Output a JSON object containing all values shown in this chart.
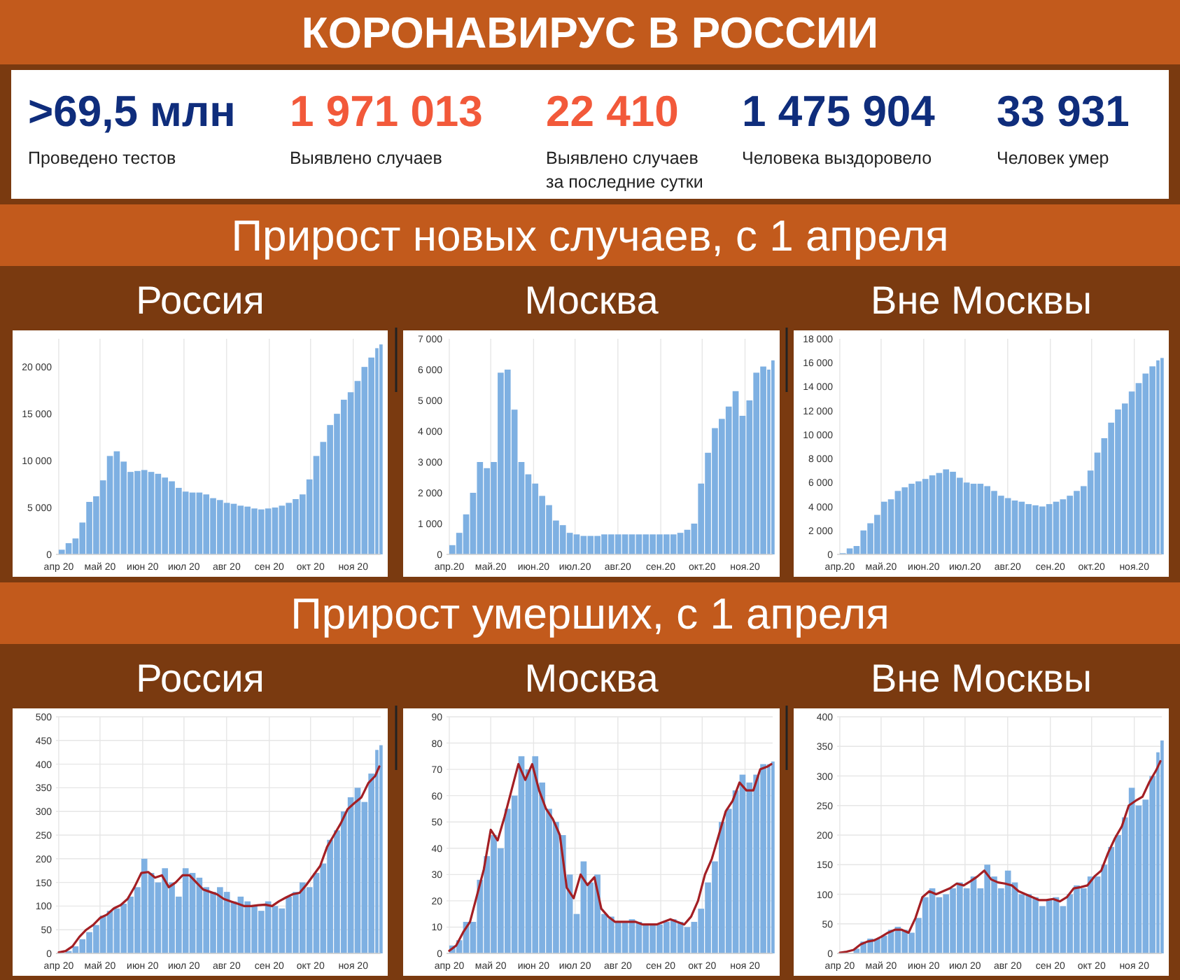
{
  "chart_data": [
    {
      "type": "other",
      "title": "КОРОНАВИРУС В РОССИИ",
      "categories": [
        "Проведено тестов",
        "Выявлено случаев",
        "Выявлено случаев за последние сутки",
        "Человека выздоровело",
        "Человек умер"
      ],
      "value_labels": [
        ">69,5 млн",
        "1 971 013",
        "22 410",
        "1 475 904",
        "33 931"
      ],
      "colors": [
        "#0f2d7c",
        "#f2593a",
        "#f2593a",
        "#0f2d7c",
        "#0f2d7c"
      ]
    },
    {
      "type": "other",
      "title": "Прирост новых случаев, с 1 апреля"
    },
    {
      "type": "bar",
      "title": "Россия",
      "color": "#7eb0e2",
      "grid": "x",
      "x": [
        "2020-04-01",
        "2020-04-06",
        "2020-04-11",
        "2020-04-16",
        "2020-04-21",
        "2020-04-26",
        "2020-05-01",
        "2020-05-06",
        "2020-05-11",
        "2020-05-16",
        "2020-05-21",
        "2020-05-26",
        "2020-05-31",
        "2020-06-05",
        "2020-06-10",
        "2020-06-15",
        "2020-06-20",
        "2020-06-25",
        "2020-06-30",
        "2020-07-05",
        "2020-07-10",
        "2020-07-15",
        "2020-07-20",
        "2020-07-25",
        "2020-07-30",
        "2020-08-04",
        "2020-08-09",
        "2020-08-14",
        "2020-08-19",
        "2020-08-24",
        "2020-08-29",
        "2020-09-03",
        "2020-09-08",
        "2020-09-13",
        "2020-09-18",
        "2020-09-23",
        "2020-09-28",
        "2020-10-03",
        "2020-10-08",
        "2020-10-13",
        "2020-10-18",
        "2020-10-23",
        "2020-10-28",
        "2020-11-02",
        "2020-11-07",
        "2020-11-12",
        "2020-11-17",
        "2020-11-20"
      ],
      "values": [
        500,
        1200,
        1700,
        3400,
        5600,
        6200,
        7900,
        10500,
        11000,
        9900,
        8800,
        8900,
        9000,
        8800,
        8600,
        8200,
        7800,
        7100,
        6700,
        6600,
        6600,
        6400,
        6000,
        5800,
        5500,
        5400,
        5200,
        5100,
        4900,
        4800,
        4900,
        5000,
        5200,
        5500,
        5900,
        6400,
        8000,
        10500,
        12000,
        13800,
        15000,
        16500,
        17300,
        18500,
        20000,
        21000,
        22000,
        22400
      ],
      "xlim": [
        "2020-03-30",
        "2020-11-21"
      ],
      "ylim": [
        0,
        23000
      ],
      "xticks": [
        {
          "value": "2020-04-01",
          "label": "апр 20"
        },
        {
          "value": "2020-05-01",
          "label": "май 20"
        },
        {
          "value": "2020-06-01",
          "label": "июн 20"
        },
        {
          "value": "2020-07-01",
          "label": "июл 20"
        },
        {
          "value": "2020-08-01",
          "label": "авг 20"
        },
        {
          "value": "2020-09-01",
          "label": "сен 20"
        },
        {
          "value": "2020-10-01",
          "label": "окт 20"
        },
        {
          "value": "2020-11-01",
          "label": "ноя 20"
        }
      ],
      "yticks": [
        0,
        {
          "value": 5000,
          "label": "5 000"
        },
        {
          "value": 10000,
          "label": "10 000"
        },
        {
          "value": 15000,
          "label": "15 000"
        },
        {
          "value": 20000,
          "label": "20 000"
        }
      ]
    },
    {
      "type": "bar",
      "title": "Москва",
      "color": "#7eb0e2",
      "grid": "x",
      "x": [
        "2020-04-01",
        "2020-04-06",
        "2020-04-11",
        "2020-04-16",
        "2020-04-21",
        "2020-04-26",
        "2020-05-01",
        "2020-05-06",
        "2020-05-11",
        "2020-05-16",
        "2020-05-21",
        "2020-05-26",
        "2020-05-31",
        "2020-06-05",
        "2020-06-10",
        "2020-06-15",
        "2020-06-20",
        "2020-06-25",
        "2020-06-30",
        "2020-07-05",
        "2020-07-10",
        "2020-07-15",
        "2020-07-20",
        "2020-07-25",
        "2020-07-30",
        "2020-08-04",
        "2020-08-09",
        "2020-08-14",
        "2020-08-19",
        "2020-08-24",
        "2020-08-29",
        "2020-09-03",
        "2020-09-08",
        "2020-09-13",
        "2020-09-18",
        "2020-09-23",
        "2020-09-28",
        "2020-10-03",
        "2020-10-08",
        "2020-10-13",
        "2020-10-18",
        "2020-10-23",
        "2020-10-28",
        "2020-11-02",
        "2020-11-07",
        "2020-11-12",
        "2020-11-17",
        "2020-11-20"
      ],
      "values": [
        300,
        700,
        1300,
        2000,
        3000,
        2800,
        3000,
        5900,
        6000,
        4700,
        3000,
        2600,
        2300,
        1900,
        1600,
        1100,
        950,
        700,
        650,
        600,
        600,
        600,
        650,
        650,
        650,
        650,
        650,
        650,
        650,
        650,
        650,
        650,
        650,
        700,
        800,
        1000,
        2300,
        3300,
        4100,
        4400,
        4800,
        5300,
        4500,
        5000,
        5900,
        6100,
        6000,
        6300
      ],
      "xlim": [
        "2020-03-30",
        "2020-11-21"
      ],
      "ylim": [
        0,
        7000
      ],
      "xticks": [
        {
          "value": "2020-04-01",
          "label": "апр.20"
        },
        {
          "value": "2020-05-01",
          "label": "май.20"
        },
        {
          "value": "2020-06-01",
          "label": "июн.20"
        },
        {
          "value": "2020-07-01",
          "label": "июл.20"
        },
        {
          "value": "2020-08-01",
          "label": "авг.20"
        },
        {
          "value": "2020-09-01",
          "label": "сен.20"
        },
        {
          "value": "2020-10-01",
          "label": "окт.20"
        },
        {
          "value": "2020-11-01",
          "label": "ноя.20"
        }
      ],
      "yticks": [
        0,
        {
          "value": 1000,
          "label": "1 000"
        },
        {
          "value": 2000,
          "label": "2 000"
        },
        {
          "value": 3000,
          "label": "3 000"
        },
        {
          "value": 4000,
          "label": "4 000"
        },
        {
          "value": 5000,
          "label": "5 000"
        },
        {
          "value": 6000,
          "label": "6 000"
        },
        {
          "value": 7000,
          "label": "7 000"
        }
      ]
    },
    {
      "type": "bar",
      "title": "Вне Москвы",
      "color": "#7eb0e2",
      "grid": "x",
      "x": [
        "2020-04-01",
        "2020-04-06",
        "2020-04-11",
        "2020-04-16",
        "2020-04-21",
        "2020-04-26",
        "2020-05-01",
        "2020-05-06",
        "2020-05-11",
        "2020-05-16",
        "2020-05-21",
        "2020-05-26",
        "2020-05-31",
        "2020-06-05",
        "2020-06-10",
        "2020-06-15",
        "2020-06-20",
        "2020-06-25",
        "2020-06-30",
        "2020-07-05",
        "2020-07-10",
        "2020-07-15",
        "2020-07-20",
        "2020-07-25",
        "2020-07-30",
        "2020-08-04",
        "2020-08-09",
        "2020-08-14",
        "2020-08-19",
        "2020-08-24",
        "2020-08-29",
        "2020-09-03",
        "2020-09-08",
        "2020-09-13",
        "2020-09-18",
        "2020-09-23",
        "2020-09-28",
        "2020-10-03",
        "2020-10-08",
        "2020-10-13",
        "2020-10-18",
        "2020-10-23",
        "2020-10-28",
        "2020-11-02",
        "2020-11-07",
        "2020-11-12",
        "2020-11-17",
        "2020-11-20"
      ],
      "values": [
        100,
        500,
        700,
        2000,
        2600,
        3300,
        4400,
        4600,
        5300,
        5600,
        5900,
        6100,
        6300,
        6600,
        6800,
        7100,
        6900,
        6400,
        6000,
        5900,
        5900,
        5700,
        5300,
        4900,
        4700,
        4500,
        4400,
        4200,
        4100,
        4000,
        4200,
        4400,
        4600,
        4900,
        5300,
        5700,
        7000,
        8500,
        9700,
        11000,
        12100,
        12600,
        13600,
        14300,
        15100,
        15700,
        16200,
        16400
      ],
      "xlim": [
        "2020-03-30",
        "2020-11-21"
      ],
      "ylim": [
        0,
        18000
      ],
      "xticks": [
        {
          "value": "2020-04-01",
          "label": "апр.20"
        },
        {
          "value": "2020-05-01",
          "label": "май.20"
        },
        {
          "value": "2020-06-01",
          "label": "июн.20"
        },
        {
          "value": "2020-07-01",
          "label": "июл.20"
        },
        {
          "value": "2020-08-01",
          "label": "авг.20"
        },
        {
          "value": "2020-09-01",
          "label": "сен.20"
        },
        {
          "value": "2020-10-01",
          "label": "окт.20"
        },
        {
          "value": "2020-11-01",
          "label": "ноя.20"
        }
      ],
      "yticks": [
        0,
        {
          "value": 2000,
          "label": "2 000"
        },
        {
          "value": 4000,
          "label": "4 000"
        },
        {
          "value": 6000,
          "label": "6 000"
        },
        {
          "value": 8000,
          "label": "8 000"
        },
        {
          "value": 10000,
          "label": "10 000"
        },
        {
          "value": 12000,
          "label": "12 000"
        },
        {
          "value": 14000,
          "label": "14 000"
        },
        {
          "value": 16000,
          "label": "16 000"
        },
        {
          "value": 18000,
          "label": "18 000"
        }
      ]
    },
    {
      "type": "other",
      "title": "Прирост умерших, с 1 апреля"
    },
    {
      "type": "bar",
      "title": "Россия",
      "grid": true,
      "x": [
        "2020-04-01",
        "2020-04-06",
        "2020-04-11",
        "2020-04-16",
        "2020-04-21",
        "2020-04-26",
        "2020-05-01",
        "2020-05-06",
        "2020-05-11",
        "2020-05-16",
        "2020-05-21",
        "2020-05-26",
        "2020-05-31",
        "2020-06-05",
        "2020-06-10",
        "2020-06-15",
        "2020-06-20",
        "2020-06-25",
        "2020-06-30",
        "2020-07-05",
        "2020-07-10",
        "2020-07-15",
        "2020-07-20",
        "2020-07-25",
        "2020-07-30",
        "2020-08-04",
        "2020-08-09",
        "2020-08-14",
        "2020-08-19",
        "2020-08-24",
        "2020-08-29",
        "2020-09-03",
        "2020-09-08",
        "2020-09-13",
        "2020-09-18",
        "2020-09-23",
        "2020-09-28",
        "2020-10-03",
        "2020-10-08",
        "2020-10-13",
        "2020-10-18",
        "2020-10-23",
        "2020-10-28",
        "2020-11-02",
        "2020-11-07",
        "2020-11-12",
        "2020-11-17",
        "2020-11-20"
      ],
      "series": [
        {
          "type": "bar",
          "color": "#7eb0e2",
          "values": [
            null,
            5,
            15,
            30,
            45,
            60,
            80,
            90,
            95,
            105,
            120,
            140,
            200,
            170,
            150,
            180,
            150,
            120,
            180,
            170,
            160,
            140,
            130,
            140,
            130,
            110,
            120,
            110,
            100,
            90,
            110,
            100,
            95,
            120,
            130,
            150,
            140,
            170,
            190,
            240,
            260,
            300,
            330,
            350,
            320,
            380,
            430,
            440
          ]
        },
        {
          "type": "line",
          "color": "#a31f24",
          "values": [
            2,
            5,
            15,
            35,
            50,
            60,
            75,
            82,
            95,
            102,
            115,
            140,
            170,
            172,
            160,
            165,
            140,
            150,
            165,
            165,
            150,
            135,
            130,
            125,
            115,
            110,
            105,
            100,
            100,
            102,
            103,
            100,
            110,
            118,
            125,
            128,
            145,
            165,
            185,
            225,
            250,
            275,
            305,
            318,
            330,
            360,
            375,
            395
          ]
        }
      ],
      "xlim": [
        "2020-03-30",
        "2020-11-21"
      ],
      "ylim": [
        0,
        500
      ],
      "xticks": [
        {
          "value": "2020-04-01",
          "label": "апр 20"
        },
        {
          "value": "2020-05-01",
          "label": "май 20"
        },
        {
          "value": "2020-06-01",
          "label": "июн 20"
        },
        {
          "value": "2020-07-01",
          "label": "июл 20"
        },
        {
          "value": "2020-08-01",
          "label": "авг 20"
        },
        {
          "value": "2020-09-01",
          "label": "сен 20"
        },
        {
          "value": "2020-10-01",
          "label": "окт 20"
        },
        {
          "value": "2020-11-01",
          "label": "ноя 20"
        }
      ],
      "yticks": [
        0,
        50,
        100,
        150,
        200,
        250,
        300,
        350,
        400,
        450,
        500
      ]
    },
    {
      "type": "bar",
      "title": "Москва",
      "grid": true,
      "x": [
        "2020-04-01",
        "2020-04-06",
        "2020-04-11",
        "2020-04-16",
        "2020-04-21",
        "2020-04-26",
        "2020-05-01",
        "2020-05-06",
        "2020-05-11",
        "2020-05-16",
        "2020-05-21",
        "2020-05-26",
        "2020-05-31",
        "2020-06-05",
        "2020-06-10",
        "2020-06-15",
        "2020-06-20",
        "2020-06-25",
        "2020-06-30",
        "2020-07-05",
        "2020-07-10",
        "2020-07-15",
        "2020-07-20",
        "2020-07-25",
        "2020-07-30",
        "2020-08-04",
        "2020-08-09",
        "2020-08-14",
        "2020-08-19",
        "2020-08-24",
        "2020-08-29",
        "2020-09-03",
        "2020-09-08",
        "2020-09-13",
        "2020-09-18",
        "2020-09-23",
        "2020-09-28",
        "2020-10-03",
        "2020-10-08",
        "2020-10-13",
        "2020-10-18",
        "2020-10-23",
        "2020-10-28",
        "2020-11-02",
        "2020-11-07",
        "2020-11-12",
        "2020-11-17",
        "2020-11-20"
      ],
      "series": [
        {
          "type": "bar",
          "color": "#7eb0e2",
          "values": [
            3,
            5,
            12,
            12,
            28,
            37,
            45,
            40,
            55,
            60,
            75,
            70,
            75,
            65,
            55,
            50,
            45,
            30,
            15,
            35,
            27,
            30,
            15,
            14,
            12,
            12,
            13,
            12,
            11,
            11,
            11,
            12,
            13,
            12,
            10,
            12,
            17,
            27,
            35,
            50,
            55,
            62,
            68,
            65,
            68,
            72,
            72,
            73
          ]
        },
        {
          "type": "line",
          "color": "#a31f24",
          "values": [
            1,
            3,
            8,
            12,
            22,
            32,
            47,
            43,
            52,
            62,
            72,
            66,
            72,
            62,
            55,
            51,
            45,
            25,
            21,
            30,
            26,
            29,
            17,
            14,
            12,
            12,
            12,
            12,
            11,
            11,
            11,
            12,
            13,
            12,
            11,
            14,
            20,
            30,
            36,
            45,
            54,
            58,
            65,
            62,
            62,
            70,
            71,
            72
          ]
        }
      ],
      "xlim": [
        "2020-03-30",
        "2020-11-21"
      ],
      "ylim": [
        0,
        90
      ],
      "xticks": [
        {
          "value": "2020-04-01",
          "label": "апр 20"
        },
        {
          "value": "2020-05-01",
          "label": "май 20"
        },
        {
          "value": "2020-06-01",
          "label": "июн 20"
        },
        {
          "value": "2020-07-01",
          "label": "июл 20"
        },
        {
          "value": "2020-08-01",
          "label": "авг 20"
        },
        {
          "value": "2020-09-01",
          "label": "сен 20"
        },
        {
          "value": "2020-10-01",
          "label": "окт 20"
        },
        {
          "value": "2020-11-01",
          "label": "ноя 20"
        }
      ],
      "yticks": [
        0,
        10,
        20,
        30,
        40,
        50,
        60,
        70,
        80,
        90
      ]
    },
    {
      "type": "bar",
      "title": "Вне Москвы",
      "grid": true,
      "x": [
        "2020-04-01",
        "2020-04-06",
        "2020-04-11",
        "2020-04-16",
        "2020-04-21",
        "2020-04-26",
        "2020-05-01",
        "2020-05-06",
        "2020-05-11",
        "2020-05-16",
        "2020-05-21",
        "2020-05-26",
        "2020-05-31",
        "2020-06-05",
        "2020-06-10",
        "2020-06-15",
        "2020-06-20",
        "2020-06-25",
        "2020-06-30",
        "2020-07-05",
        "2020-07-10",
        "2020-07-15",
        "2020-07-20",
        "2020-07-25",
        "2020-07-30",
        "2020-08-04",
        "2020-08-09",
        "2020-08-14",
        "2020-08-19",
        "2020-08-24",
        "2020-08-29",
        "2020-09-03",
        "2020-09-08",
        "2020-09-13",
        "2020-09-18",
        "2020-09-23",
        "2020-09-28",
        "2020-10-03",
        "2020-10-08",
        "2020-10-13",
        "2020-10-18",
        "2020-10-23",
        "2020-10-28",
        "2020-11-02",
        "2020-11-07",
        "2020-11-12",
        "2020-11-17",
        "2020-11-20"
      ],
      "series": [
        {
          "type": "bar",
          "color": "#7eb0e2",
          "values": [
            null,
            null,
            8,
            20,
            25,
            25,
            30,
            40,
            45,
            40,
            35,
            60,
            95,
            110,
            95,
            100,
            110,
            120,
            110,
            130,
            110,
            150,
            130,
            110,
            140,
            120,
            100,
            100,
            95,
            80,
            90,
            95,
            80,
            100,
            115,
            110,
            130,
            130,
            150,
            180,
            200,
            230,
            280,
            250,
            260,
            300,
            340,
            360
          ]
        },
        {
          "type": "line",
          "color": "#a31f24",
          "values": [
            1,
            3,
            6,
            15,
            20,
            22,
            28,
            35,
            40,
            40,
            35,
            60,
            95,
            105,
            100,
            105,
            110,
            118,
            115,
            122,
            130,
            140,
            125,
            120,
            118,
            115,
            105,
            100,
            95,
            90,
            90,
            92,
            88,
            95,
            110,
            112,
            115,
            130,
            140,
            170,
            195,
            215,
            250,
            258,
            265,
            290,
            310,
            325
          ]
        }
      ],
      "xlim": [
        "2020-03-30",
        "2020-11-21"
      ],
      "ylim": [
        0,
        400
      ],
      "xticks": [
        {
          "value": "2020-04-01",
          "label": "апр 20"
        },
        {
          "value": "2020-05-01",
          "label": "май 20"
        },
        {
          "value": "2020-06-01",
          "label": "июн 20"
        },
        {
          "value": "2020-07-01",
          "label": "июл 20"
        },
        {
          "value": "2020-08-01",
          "label": "авг 20"
        },
        {
          "value": "2020-09-01",
          "label": "сен 20"
        },
        {
          "value": "2020-10-01",
          "label": "окт 20"
        },
        {
          "value": "2020-11-01",
          "label": "ноя 20"
        }
      ],
      "yticks": [
        0,
        50,
        100,
        150,
        200,
        250,
        300,
        350,
        400
      ]
    }
  ]
}
